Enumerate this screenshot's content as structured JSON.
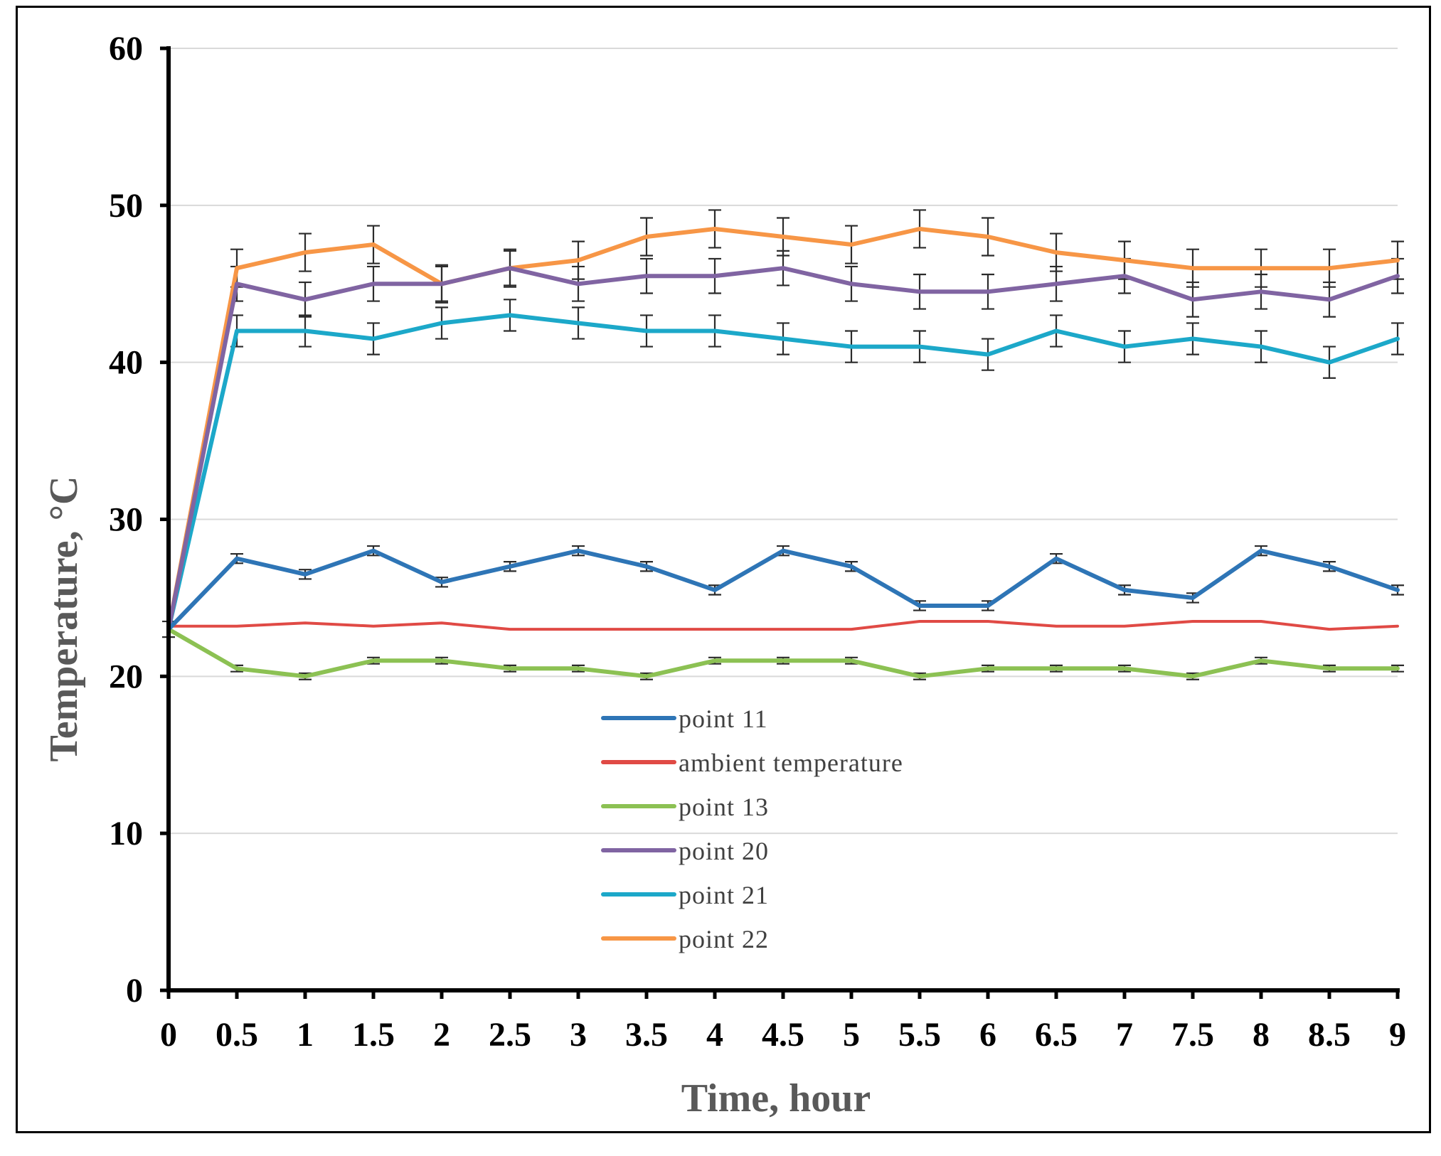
{
  "chart_data": {
    "type": "line",
    "title": "",
    "xlabel": "Time, hour",
    "ylabel": "Temperature, °C",
    "x": [
      0,
      0.5,
      1,
      1.5,
      2,
      2.5,
      3,
      3.5,
      4,
      4.5,
      5,
      5.5,
      6,
      6.5,
      7,
      7.5,
      8,
      8.5,
      9
    ],
    "x_tick_labels": [
      "0",
      "0.5",
      "1",
      "1.5",
      "2",
      "2.5",
      "3",
      "3.5",
      "4",
      "4.5",
      "5",
      "5.5",
      "6",
      "6.5",
      "7",
      "7.5",
      "8",
      "8.5",
      "9"
    ],
    "xlim": [
      0,
      9
    ],
    "ylim": [
      0,
      60
    ],
    "y_ticks": [
      0,
      10,
      20,
      30,
      40,
      50,
      60
    ],
    "y_tick_labels": [
      "0",
      "10",
      "20",
      "30",
      "40",
      "50",
      "60"
    ],
    "grid": "horizontal",
    "legend_position": "center",
    "series": [
      {
        "name": "point 11",
        "color": "#2E75B6",
        "values": [
          23,
          27.5,
          26.5,
          28,
          26,
          27,
          28,
          27,
          25.5,
          28,
          27,
          24.5,
          24.5,
          27.5,
          25.5,
          25,
          28,
          27,
          25.5
        ],
        "error": [
          0,
          0.3,
          0.3,
          0.3,
          0.3,
          0.3,
          0.3,
          0.3,
          0.3,
          0.3,
          0.3,
          0.3,
          0.3,
          0.3,
          0.3,
          0.3,
          0.3,
          0.3,
          0.3
        ]
      },
      {
        "name": "ambient temperature",
        "color": "#E04A45",
        "values": [
          23.2,
          23.2,
          23.4,
          23.2,
          23.4,
          23,
          23,
          23,
          23,
          23,
          23,
          23.5,
          23.5,
          23.2,
          23.2,
          23.5,
          23.5,
          23,
          23.2
        ],
        "error": []
      },
      {
        "name": "point 13",
        "color": "#8CC153",
        "values": [
          23,
          20.5,
          20,
          21,
          21,
          20.5,
          20.5,
          20,
          21,
          21,
          21,
          20,
          20.5,
          20.5,
          20.5,
          20,
          21,
          20.5,
          20.5
        ],
        "error": [
          0.5,
          0.2,
          0.2,
          0.2,
          0.2,
          0.2,
          0.2,
          0.2,
          0.2,
          0.2,
          0.2,
          0.2,
          0.2,
          0.2,
          0.2,
          0.2,
          0.2,
          0.2,
          0.2
        ]
      },
      {
        "name": "point 20",
        "color": "#8064A2",
        "values": [
          23,
          45,
          44,
          45,
          45,
          46,
          45,
          45.5,
          45.5,
          46,
          45,
          44.5,
          44.5,
          45,
          45.5,
          44,
          44.5,
          44,
          45.5
        ],
        "error": [
          0,
          1.1,
          1.1,
          1.1,
          1.1,
          1.1,
          1.1,
          1.1,
          1.1,
          1.1,
          1.1,
          1.1,
          1.1,
          1.1,
          1.1,
          1.1,
          1.1,
          1.1,
          1.1
        ]
      },
      {
        "name": "point 21",
        "color": "#1CA8C9",
        "values": [
          23,
          42,
          42,
          41.5,
          42.5,
          43,
          42.5,
          42,
          42,
          41.5,
          41,
          41,
          40.5,
          42,
          41,
          41.5,
          41,
          40,
          41.5
        ],
        "error": [
          0,
          1,
          1,
          1,
          1,
          1,
          1,
          1,
          1,
          1,
          1,
          1,
          1,
          1,
          1,
          1,
          1,
          1,
          1
        ]
      },
      {
        "name": "point 22",
        "color": "#F79646",
        "values": [
          23,
          46,
          47,
          47.5,
          45,
          46,
          46.5,
          48,
          48.5,
          48,
          47.5,
          48.5,
          48,
          47,
          46.5,
          46,
          46,
          46,
          46.5
        ],
        "error": [
          0,
          1.2,
          1.2,
          1.2,
          1.2,
          1.2,
          1.2,
          1.2,
          1.2,
          1.2,
          1.2,
          1.2,
          1.2,
          1.2,
          1.2,
          1.2,
          1.2,
          1.2,
          1.2
        ]
      }
    ]
  }
}
